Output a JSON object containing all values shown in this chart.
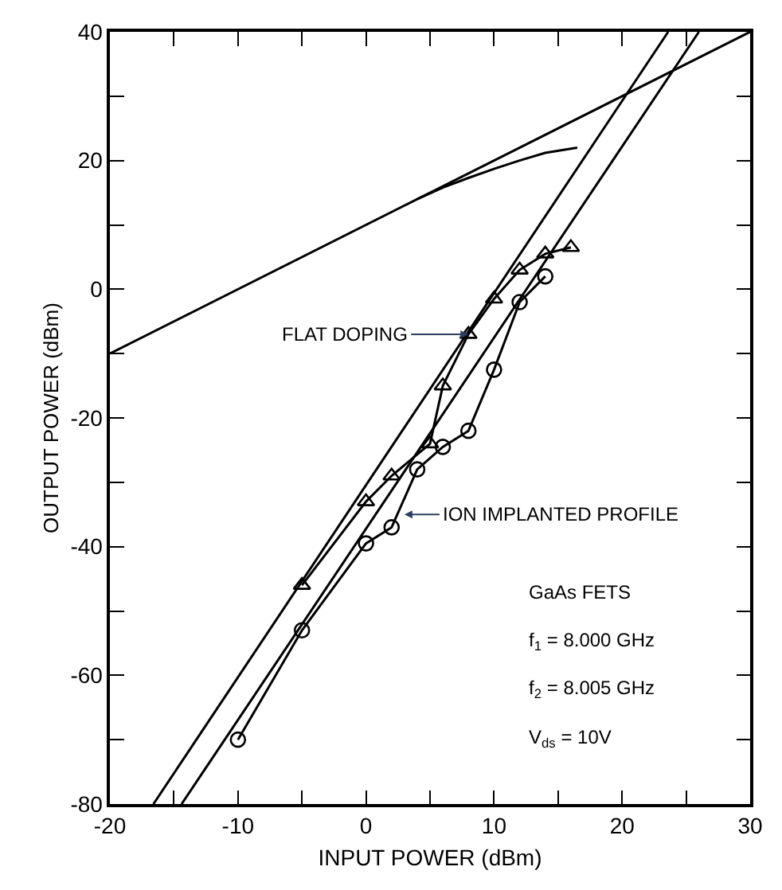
{
  "chart_data": {
    "type": "line",
    "xlabel": "INPUT POWER (dBm)",
    "ylabel": "OUTPUT POWER (dBm)",
    "xlim": [
      -20,
      30
    ],
    "ylim": [
      -80,
      40
    ],
    "xticks": [
      -20,
      {
        "value": -15,
        "label": null
      },
      -10,
      {
        "value": -5,
        "label": null
      },
      0,
      {
        "value": 5,
        "label": null
      },
      10,
      {
        "value": 15,
        "label": null
      },
      20,
      {
        "value": 25,
        "label": null
      },
      30
    ],
    "yticks": [
      -80,
      {
        "value": -70,
        "label": null
      },
      -60,
      {
        "value": -50,
        "label": null
      },
      -40,
      {
        "value": -30,
        "label": null
      },
      -20,
      {
        "value": -10,
        "label": null
      },
      0,
      {
        "value": 10,
        "label": null
      },
      20,
      {
        "value": 30,
        "label": null
      },
      40
    ],
    "series": [
      {
        "color": "#000000",
        "marker": "none",
        "x": [
          -20,
          30
        ],
        "values": [
          -10,
          40
        ]
      },
      {
        "color": "#000000",
        "marker": "none",
        "x": [
          4,
          6,
          8,
          10,
          12,
          14,
          16.5
        ],
        "values": [
          14,
          15.8,
          17.3,
          18.7,
          20,
          21.2,
          22
        ]
      },
      {
        "color": "#000000",
        "marker": "none",
        "x": [
          -16.6,
          23.6
        ],
        "values": [
          -80,
          40
        ]
      },
      {
        "color": "#000000",
        "marker": "none",
        "x": [
          -14.4,
          26
        ],
        "values": [
          -80,
          40
        ]
      },
      {
        "color": "#000000",
        "marker": "triangle",
        "x": [
          -5,
          0,
          2,
          5,
          6,
          8,
          10,
          12,
          14,
          16
        ],
        "values": [
          -46,
          -33,
          -29,
          -24,
          -15,
          -7,
          -1.5,
          3,
          5.5,
          6.5
        ]
      },
      {
        "color": "#000000",
        "marker": "circle",
        "x": [
          -10,
          -5,
          0,
          2,
          4,
          6,
          8,
          10,
          12,
          14
        ],
        "values": [
          -70,
          -53,
          -39.5,
          -37,
          -28,
          -24.5,
          -22,
          -12.5,
          -2,
          2
        ]
      }
    ],
    "annotations": [
      {
        "text": "FLAT DOPING",
        "x": 8,
        "y": -7
      },
      {
        "text": "ION IMPLANTED PROFILE",
        "x": 3,
        "y": -35
      },
      "GaAs FETS",
      "f$_{1}$ = 8.000 GHz",
      "f$_{2}$ = 8.005 GHz",
      "V$_{ds}$ = 10V"
    ]
  }
}
